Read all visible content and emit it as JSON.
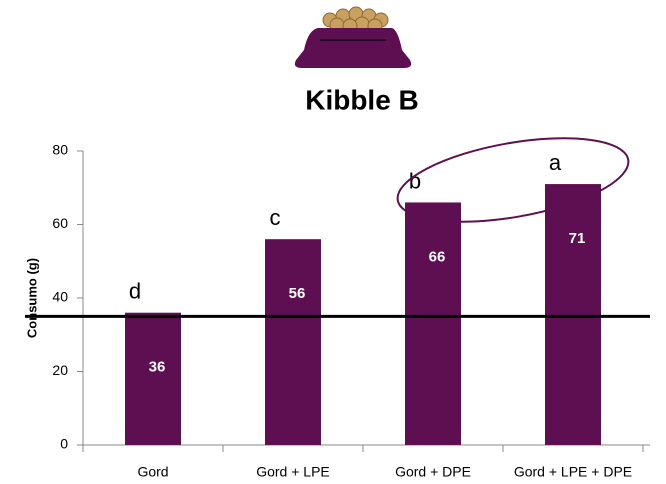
{
  "chart_data": {
    "type": "bar",
    "title": "Kibble B",
    "ylabel": "Consumo (g)",
    "categories": [
      "Gord",
      "Gord + LPE",
      "Gord + DPE",
      "Gord + LPE + DPE"
    ],
    "values": [
      36,
      56,
      66,
      71
    ],
    "color": "#5e0f52",
    "significance_letters": [
      "d",
      "c",
      "b",
      "a"
    ],
    "reference_line": 35,
    "ylim": [
      0,
      80
    ],
    "yticks": [
      0,
      20,
      40,
      60,
      80
    ],
    "grid": false
  }
}
